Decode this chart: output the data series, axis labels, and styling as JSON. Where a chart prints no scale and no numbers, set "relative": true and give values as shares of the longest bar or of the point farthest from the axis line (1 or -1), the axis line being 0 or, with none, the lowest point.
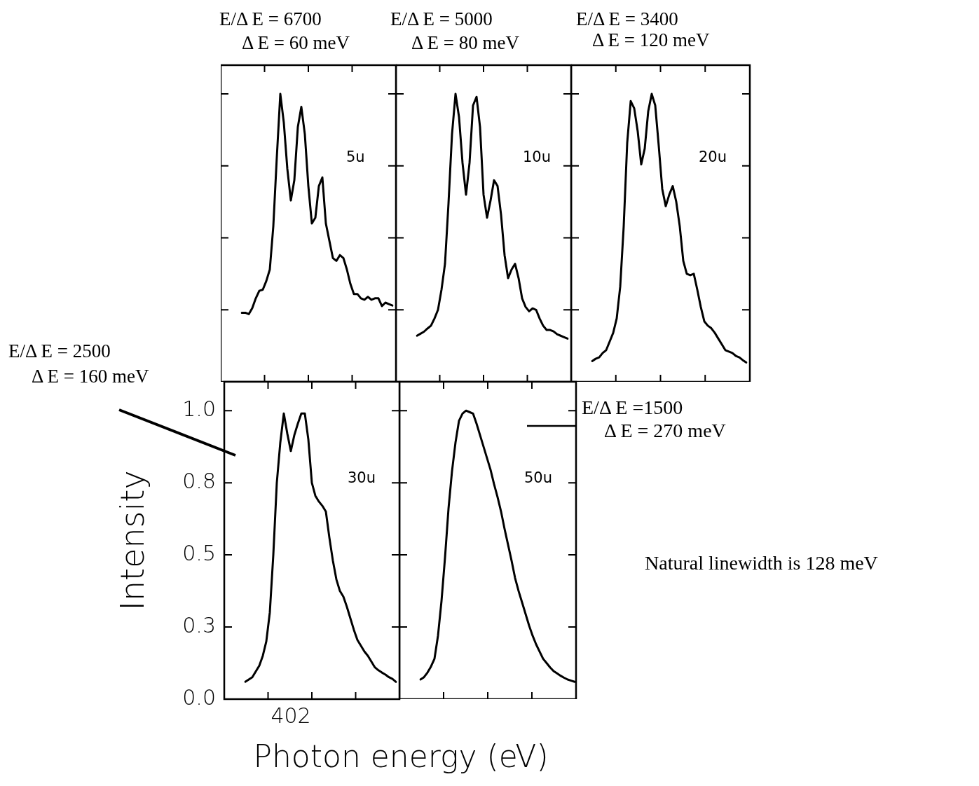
{
  "chart_data": [
    {
      "type": "line",
      "title": "E/Δ E = 6700",
      "subtitle": "Δ E = 60 meV",
      "annotations": [
        "5u"
      ],
      "color": "#000000",
      "tick_labels": false,
      "relative": true,
      "categories": [
        null,
        null,
        null,
        null,
        null,
        null,
        null,
        null,
        null,
        null,
        null,
        null,
        null,
        null,
        null,
        null,
        null,
        null,
        null,
        null,
        null,
        null,
        null,
        null,
        null,
        null,
        null,
        null,
        null,
        null,
        null,
        null,
        null,
        null,
        null,
        null,
        null,
        null,
        null,
        null,
        null,
        null,
        null,
        null
      ],
      "values": [
        0.24,
        0.24,
        0.235,
        0.256,
        0.29,
        0.316,
        0.32,
        0.35,
        0.39,
        0.54,
        0.78,
        1.0,
        0.9,
        0.74,
        0.63,
        0.7,
        0.885,
        0.955,
        0.86,
        0.68,
        0.55,
        0.57,
        0.68,
        0.71,
        0.55,
        0.49,
        0.43,
        0.42,
        0.44,
        0.43,
        0.39,
        0.34,
        0.305,
        0.305,
        0.29,
        0.285,
        0.295,
        0.285,
        0.29,
        0.29,
        0.263,
        0.275,
        0.27,
        0.265
      ]
    },
    {
      "type": "line",
      "title": "E/Δ E = 5000",
      "subtitle": "Δ E = 80 meV",
      "annotations": [
        "10u"
      ],
      "color": "#000000",
      "tick_labels": false,
      "relative": true,
      "categories": [
        null,
        null,
        null,
        null,
        null,
        null,
        null,
        null,
        null,
        null,
        null,
        null,
        null,
        null,
        null,
        null,
        null,
        null,
        null,
        null,
        null,
        null,
        null,
        null,
        null,
        null,
        null,
        null,
        null,
        null,
        null,
        null,
        null,
        null,
        null,
        null,
        null,
        null,
        null,
        null,
        null,
        null,
        null,
        null
      ],
      "values": [
        0.16,
        0.167,
        0.174,
        0.185,
        0.195,
        0.22,
        0.25,
        0.32,
        0.41,
        0.62,
        0.86,
        1.0,
        0.92,
        0.76,
        0.65,
        0.76,
        0.96,
        0.99,
        0.885,
        0.65,
        0.57,
        0.63,
        0.7,
        0.68,
        0.58,
        0.44,
        0.36,
        0.39,
        0.41,
        0.36,
        0.29,
        0.26,
        0.245,
        0.255,
        0.25,
        0.22,
        0.195,
        0.18,
        0.18,
        0.175,
        0.165,
        0.16,
        0.155,
        0.15
      ]
    },
    {
      "type": "line",
      "title": "E/Δ E = 3400",
      "subtitle": "Δ E = 120 meV",
      "annotations": [
        "20u"
      ],
      "color": "#000000",
      "tick_labels": false,
      "relative": true,
      "categories": [
        null,
        null,
        null,
        null,
        null,
        null,
        null,
        null,
        null,
        null,
        null,
        null,
        null,
        null,
        null,
        null,
        null,
        null,
        null,
        null,
        null,
        null,
        null,
        null,
        null,
        null,
        null,
        null,
        null,
        null,
        null,
        null,
        null,
        null,
        null,
        null,
        null,
        null,
        null,
        null,
        null,
        null,
        null,
        null,
        null
      ],
      "values": [
        0.072,
        0.08,
        0.085,
        0.1,
        0.11,
        0.14,
        0.17,
        0.22,
        0.33,
        0.54,
        0.83,
        0.975,
        0.95,
        0.87,
        0.755,
        0.81,
        0.94,
        1.0,
        0.96,
        0.82,
        0.67,
        0.61,
        0.65,
        0.68,
        0.625,
        0.54,
        0.42,
        0.375,
        0.37,
        0.375,
        0.32,
        0.26,
        0.21,
        0.195,
        0.186,
        0.17,
        0.15,
        0.13,
        0.11,
        0.105,
        0.1,
        0.09,
        0.085,
        0.075,
        0.067
      ]
    },
    {
      "type": "line",
      "title": "E/Δ E = 2500",
      "subtitle": "Δ E = 160 meV",
      "annotations": [
        "30u"
      ],
      "color": "#000000",
      "xlabel": "Photon energy (eV)",
      "ylabel": "Intensity",
      "ylim": [
        0,
        1.1
      ],
      "yticks": [
        {
          "value": 0,
          "label": "0.0"
        },
        {
          "value": 0.25,
          "label": "0.3"
        },
        {
          "value": 0.5,
          "label": "0.5"
        },
        {
          "value": 0.75,
          "label": "0.8"
        },
        {
          "value": 1,
          "label": "1.0"
        }
      ],
      "categories": [
        null,
        null,
        null,
        null,
        null,
        null,
        null,
        null,
        null,
        null,
        null,
        null,
        null,
        "402",
        null,
        null,
        null,
        null,
        null,
        null,
        null,
        null,
        null,
        null,
        null,
        null,
        null,
        null,
        null,
        null,
        null,
        null,
        null,
        null,
        null,
        null,
        null,
        null,
        null,
        null,
        null,
        null,
        null,
        null
      ],
      "values": [
        0.06,
        0.068,
        0.076,
        0.096,
        0.116,
        0.15,
        0.2,
        0.3,
        0.5,
        0.75,
        0.89,
        0.99,
        0.92,
        0.86,
        0.915,
        0.955,
        0.99,
        0.99,
        0.9,
        0.75,
        0.705,
        0.685,
        0.67,
        0.65,
        0.56,
        0.48,
        0.415,
        0.375,
        0.355,
        0.32,
        0.28,
        0.24,
        0.205,
        0.185,
        0.165,
        0.15,
        0.13,
        0.11,
        0.1,
        0.092,
        0.085,
        0.076,
        0.07,
        0.06
      ]
    },
    {
      "type": "line",
      "annotations": [
        "50u",
        "E/Δ E =1500",
        "Δ E = 270 meV",
        "Natural linewidth is 128 meV"
      ],
      "color": "#000000",
      "tick_labels": false,
      "relative": true,
      "categories": [
        null,
        null,
        null,
        null,
        null,
        null,
        null,
        null,
        null,
        null,
        null,
        null,
        null,
        null,
        null,
        null,
        null,
        null,
        null,
        null,
        null,
        null,
        null,
        null,
        null,
        null,
        null,
        null,
        null,
        null,
        null,
        null,
        null,
        null,
        null,
        null,
        null,
        null,
        null,
        null,
        null,
        null,
        null,
        null,
        null
      ],
      "values": [
        0.068,
        0.076,
        0.092,
        0.113,
        0.14,
        0.22,
        0.34,
        0.49,
        0.66,
        0.79,
        0.89,
        0.965,
        0.99,
        1.0,
        0.995,
        0.99,
        0.955,
        0.915,
        0.875,
        0.835,
        0.795,
        0.745,
        0.7,
        0.65,
        0.59,
        0.535,
        0.48,
        0.42,
        0.375,
        0.335,
        0.295,
        0.255,
        0.22,
        0.19,
        0.165,
        0.14,
        0.125,
        0.11,
        0.097,
        0.089,
        0.081,
        0.074,
        0.068,
        0.064,
        0.06
      ]
    }
  ]
}
